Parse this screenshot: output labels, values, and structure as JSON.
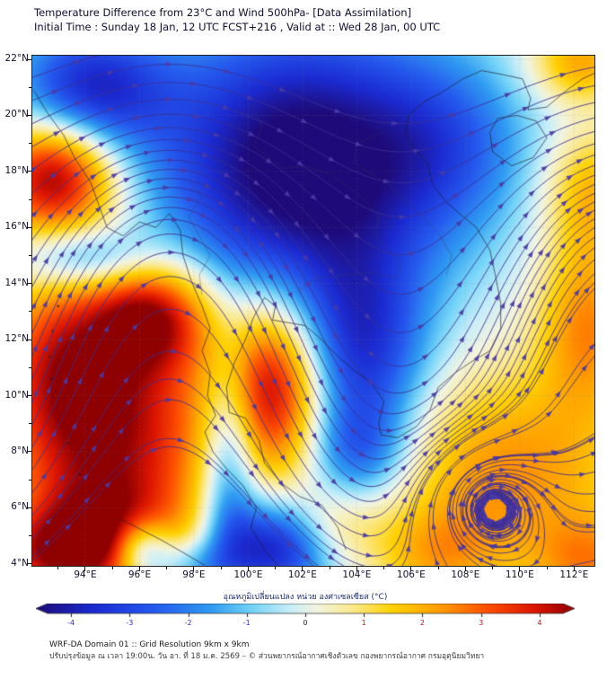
{
  "header": {
    "title_line1": "Temperature Difference from 23°C and Wind 500hPa- [Data Assimilation]",
    "title_line2": "Initial Time : Sunday 18 Jan, 12 UTC FCST+216 , Valid at ::  Wed 28 Jan, 00 UTC"
  },
  "map": {
    "x_tick_values": [
      94,
      96,
      98,
      100,
      102,
      104,
      106,
      108,
      110,
      112
    ],
    "x_tick_labels": [
      "94°E",
      "96°E",
      "98°E",
      "100°E",
      "102°E",
      "104°E",
      "106°E",
      "108°E",
      "110°E",
      "112°E"
    ],
    "y_tick_values": [
      4,
      6,
      8,
      10,
      12,
      14,
      16,
      18,
      20,
      22
    ],
    "y_tick_labels": [
      "4°N",
      "6°N",
      "8°N",
      "10°N",
      "12°N",
      "14°N",
      "16°N",
      "18°N",
      "20°N",
      "22°N"
    ]
  },
  "colorbar": {
    "label": "อุณหภูมิเปลี่ยนแปลง หน่วย องศาเซลเซียส (°C)",
    "tick_values": [
      -4,
      -3,
      -2,
      -1,
      0,
      1,
      2,
      3,
      4
    ],
    "tick_labels": [
      "-4",
      "-3",
      "-2",
      "-1",
      "0",
      "1",
      "2",
      "3",
      "4"
    ],
    "neg_color": "#2b2bcc",
    "zero_color": "#222222",
    "pos_color": "#c01616"
  },
  "footer": {
    "line1": "WRF-DA Domain 01 :: Grid Resolution 9km x 9km",
    "line2": "ปรับปรุงข้อมูล ณ เวลา 19:00น. วัน อา. ที่ 18 ม.ค. 2569 – © ส่วนพยากรณ์อากาศเชิงตัวเลข กองพยากรณ์อากาศ กรมอุตุนิยมวิทยา"
  },
  "chart_data": {
    "type": "heatmap",
    "overlay": "wind_streamlines_500hPa",
    "title": "Temperature Difference from 23°C and Wind 500hPa- [Data Assimilation]",
    "subtitle": "Initial Time : Sunday 18 Jan, 12 UTC FCST+216 , Valid at ::  Wed 28 Jan, 00 UTC",
    "units": "°C",
    "xlim": [
      92.05,
      112.75
    ],
    "ylim": [
      3.93,
      22.13
    ],
    "grid": "dotted",
    "colorbar_range": [
      -4.6,
      4.6
    ],
    "color_stops": [
      [
        -4.6,
        "#1e0a78"
      ],
      [
        -3.6,
        "#1b2bd2"
      ],
      [
        -2.6,
        "#2458ee"
      ],
      [
        -1.6,
        "#2f9cf2"
      ],
      [
        -0.9,
        "#74d4f7"
      ],
      [
        -0.25,
        "#c8eef9"
      ],
      [
        0.2,
        "#f2f4df"
      ],
      [
        0.8,
        "#fbe98c"
      ],
      [
        1.5,
        "#ffd100"
      ],
      [
        2.3,
        "#ff9c00"
      ],
      [
        3.1,
        "#fe5000"
      ],
      [
        3.9,
        "#dd1500"
      ],
      [
        4.6,
        "#8f0000"
      ]
    ],
    "temperature_blobs": [
      [
        101.9,
        18.2,
        -5.2,
        3.8,
        3.6
      ],
      [
        104.2,
        11.3,
        -3.2,
        1.7,
        2.6
      ],
      [
        94.1,
        20.9,
        -3.6,
        2.0,
        1.6
      ],
      [
        99.3,
        7.8,
        -2.8,
        0.75,
        2.8
      ],
      [
        101.0,
        4.6,
        -4.2,
        1.5,
        1.2
      ],
      [
        96.1,
        4.5,
        -3.4,
        0.8,
        0.8
      ],
      [
        93.9,
        14.9,
        -2.2,
        1.7,
        0.8
      ],
      [
        107.4,
        19.0,
        -1.6,
        2.2,
        2.2
      ],
      [
        104.0,
        8.0,
        -1.8,
        1.2,
        1.2
      ],
      [
        97.9,
        3.9,
        -1.8,
        1.0,
        0.7
      ],
      [
        92.9,
        17.9,
        4.8,
        1.6,
        1.5
      ],
      [
        94.8,
        8.8,
        4.6,
        2.9,
        3.4
      ],
      [
        96.5,
        12.9,
        3.6,
        1.6,
        1.4
      ],
      [
        93.0,
        11.5,
        1.6,
        1.5,
        2.0
      ],
      [
        94.6,
        4.8,
        3.0,
        2.0,
        1.3
      ],
      [
        100.9,
        10.4,
        4.4,
        1.4,
        2.2
      ],
      [
        109.6,
        7.3,
        2.4,
        3.2,
        2.6
      ],
      [
        107.0,
        4.3,
        1.6,
        1.6,
        1.2
      ],
      [
        112.5,
        12.6,
        2.4,
        1.3,
        2.2
      ],
      [
        112.7,
        17.3,
        1.9,
        1.3,
        1.6
      ],
      [
        112.2,
        21.9,
        2.2,
        1.3,
        1.0
      ],
      [
        102.9,
        5.3,
        1.4,
        1.3,
        1.0
      ],
      [
        112.6,
        4.0,
        2.0,
        1.5,
        1.2
      ],
      [
        92.5,
        4.2,
        1.8,
        1.5,
        1.0
      ]
    ],
    "wind_field": {
      "base_u0": 0.55,
      "base_u1": 0.65,
      "wave": {
        "amp_min": 0.35,
        "amp_max": 1.5,
        "lat_center": 12.2,
        "lat_width": 5.2,
        "lon_phase": 97.1,
        "lon_scale": 2.7
      },
      "vortex": {
        "lon": 108.6,
        "lat": 6.4,
        "strength": 1.5,
        "radius": 1.7
      }
    },
    "seeds": {
      "left_edge": {
        "lat_start": 4.15,
        "lat_end": 22.05,
        "step": 0.82,
        "lon_offset": 0.05
      },
      "bottom_edge": {
        "lon_start": 102.5,
        "lon_end": 112.3,
        "step": 1.6,
        "lat": 3.98
      },
      "vortex_rings": {
        "radii": [
          0.5,
          1.0,
          1.55
        ],
        "angles": [
          0.4,
          2.5,
          4.6
        ]
      }
    },
    "coastlines": [
      [
        [
          92.1,
          20.9
        ],
        [
          92.6,
          20.1
        ],
        [
          93.2,
          19.3
        ],
        [
          93.6,
          18.5
        ],
        [
          94.2,
          17.6
        ],
        [
          94.5,
          16.8
        ],
        [
          94.8,
          16.0
        ],
        [
          95.4,
          15.7
        ],
        [
          96.0,
          16.2
        ],
        [
          96.6,
          16.0
        ],
        [
          97.1,
          16.5
        ],
        [
          97.5,
          15.9
        ],
        [
          97.6,
          15.0
        ],
        [
          97.9,
          14.1
        ],
        [
          98.3,
          13.2
        ],
        [
          98.6,
          12.4
        ],
        [
          98.3,
          11.6
        ],
        [
          98.6,
          10.8
        ],
        [
          98.5,
          10.0
        ],
        [
          98.8,
          9.3
        ],
        [
          98.4,
          8.7
        ],
        [
          98.7,
          8.0
        ],
        [
          99.2,
          7.4
        ],
        [
          99.8,
          6.8
        ],
        [
          100.3,
          6.0
        ],
        [
          100.1,
          5.3
        ],
        [
          100.6,
          4.5
        ],
        [
          101.1,
          3.95
        ]
      ],
      [
        [
          100.6,
          13.5
        ],
        [
          100.2,
          12.8
        ],
        [
          99.9,
          12.0
        ],
        [
          99.5,
          11.2
        ],
        [
          99.2,
          10.3
        ],
        [
          99.3,
          9.4
        ],
        [
          99.9,
          9.2
        ],
        [
          100.4,
          8.4
        ],
        [
          100.6,
          7.6
        ],
        [
          101.2,
          6.9
        ],
        [
          101.9,
          6.4
        ],
        [
          102.7,
          6.1
        ],
        [
          103.3,
          5.3
        ],
        [
          103.6,
          4.5
        ]
      ],
      [
        [
          100.6,
          13.5
        ],
        [
          101.0,
          13.2
        ],
        [
          100.9,
          12.7
        ],
        [
          101.5,
          12.6
        ],
        [
          102.1,
          12.5
        ],
        [
          102.7,
          12.0
        ],
        [
          103.3,
          11.4
        ],
        [
          103.9,
          10.9
        ],
        [
          104.5,
          10.5
        ],
        [
          105.0,
          9.8
        ],
        [
          104.8,
          9.0
        ],
        [
          104.9,
          8.6
        ],
        [
          105.5,
          8.5
        ],
        [
          106.2,
          8.9
        ],
        [
          106.7,
          9.5
        ],
        [
          107.0,
          10.3
        ],
        [
          107.6,
          10.8
        ],
        [
          108.2,
          11.2
        ],
        [
          108.9,
          11.6
        ],
        [
          109.3,
          12.4
        ],
        [
          109.3,
          13.3
        ],
        [
          109.1,
          14.3
        ],
        [
          108.9,
          15.2
        ],
        [
          108.4,
          16.0
        ],
        [
          107.9,
          16.4
        ],
        [
          107.3,
          16.9
        ],
        [
          106.8,
          17.5
        ],
        [
          106.6,
          18.3
        ],
        [
          106.1,
          18.8
        ],
        [
          105.8,
          19.4
        ],
        [
          105.9,
          20.0
        ],
        [
          106.5,
          20.5
        ],
        [
          107.1,
          20.8
        ],
        [
          107.9,
          21.3
        ],
        [
          108.6,
          21.6
        ]
      ],
      [
        [
          108.6,
          21.6
        ],
        [
          109.4,
          21.45
        ],
        [
          110.1,
          21.3
        ],
        [
          110.4,
          20.6
        ],
        [
          110.3,
          20.2
        ],
        [
          111.0,
          20.3
        ],
        [
          111.6,
          20.8
        ],
        [
          112.3,
          21.3
        ],
        [
          112.75,
          21.5
        ]
      ],
      [
        [
          109.2,
          19.9
        ],
        [
          109.9,
          20.0
        ],
        [
          110.6,
          19.8
        ],
        [
          111.0,
          19.2
        ],
        [
          110.5,
          18.5
        ],
        [
          109.7,
          18.2
        ],
        [
          109.0,
          18.7
        ],
        [
          108.9,
          19.4
        ],
        [
          109.2,
          19.9
        ]
      ],
      [
        [
          95.3,
          5.6
        ],
        [
          96.0,
          5.25
        ],
        [
          96.8,
          4.85
        ],
        [
          97.7,
          4.35
        ],
        [
          98.4,
          3.95
        ]
      ]
    ],
    "borders": [
      [
        [
          97.8,
          17.7
        ],
        [
          98.3,
          17.1
        ],
        [
          97.8,
          16.4
        ],
        [
          98.2,
          15.7
        ],
        [
          98.6,
          15.0
        ],
        [
          98.2,
          14.3
        ],
        [
          98.3,
          13.6
        ]
      ],
      [
        [
          100.1,
          20.4
        ],
        [
          100.5,
          19.6
        ],
        [
          100.2,
          18.9
        ],
        [
          101.3,
          18.1
        ],
        [
          102.1,
          18.2
        ],
        [
          103.0,
          17.9
        ],
        [
          103.9,
          17.3
        ],
        [
          104.8,
          16.5
        ],
        [
          104.7,
          15.6
        ],
        [
          105.6,
          14.8
        ],
        [
          105.5,
          14.2
        ],
        [
          104.5,
          14.4
        ],
        [
          103.5,
          14.3
        ],
        [
          102.5,
          14.2
        ],
        [
          101.8,
          13.7
        ]
      ],
      [
        [
          105.2,
          19.5
        ],
        [
          104.0,
          19.0
        ],
        [
          103.9,
          18.3
        ],
        [
          105.1,
          17.6
        ],
        [
          106.3,
          16.5
        ],
        [
          107.0,
          15.8
        ],
        [
          107.5,
          15.0
        ],
        [
          107.3,
          14.3
        ]
      ]
    ],
    "islands": [
      [
        93.0,
        13.2
      ],
      [
        92.8,
        12.3
      ],
      [
        92.7,
        11.4
      ],
      [
        92.75,
        10.6
      ],
      [
        93.4,
        8.3
      ],
      [
        93.8,
        7.2
      ]
    ],
    "style": {
      "stream_color": "#3d2f92",
      "arrow_color": "#4b3aa6",
      "grid_color": "rgba(130,130,145,0.4)",
      "coast_color": "rgba(30,30,45,0.85)",
      "border_color": "rgba(60,60,85,0.55)",
      "field_clamp": 4.6
    }
  }
}
